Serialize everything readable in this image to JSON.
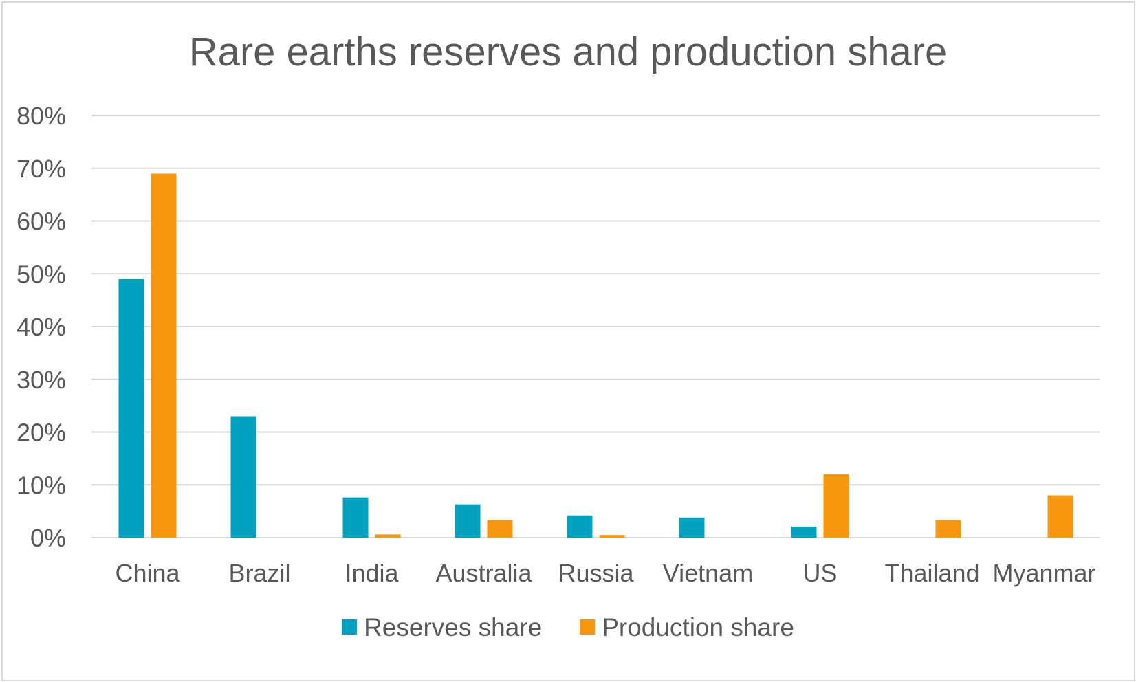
{
  "chart_data": {
    "type": "bar",
    "title": "Rare earths reserves and production share",
    "xlabel": "",
    "ylabel": "",
    "ylim": [
      0,
      0.8
    ],
    "y_ticks": [
      0,
      0.1,
      0.2,
      0.3,
      0.4,
      0.5,
      0.6,
      0.7,
      0.8
    ],
    "y_tick_labels": [
      "0%",
      "10%",
      "20%",
      "30%",
      "40%",
      "50%",
      "60%",
      "70%",
      "80%"
    ],
    "grid": true,
    "legend_position": "bottom",
    "categories": [
      "China",
      "Brazil",
      "India",
      "Australia",
      "Russia",
      "Vietnam",
      "US",
      "Thailand",
      "Myanmar"
    ],
    "series": [
      {
        "name": "Reserves share",
        "color": "#00A2BF",
        "values": [
          0.49,
          0.23,
          0.076,
          0.063,
          0.042,
          0.038,
          0.021,
          0,
          0
        ]
      },
      {
        "name": "Production share",
        "color": "#F7960F",
        "values": [
          0.69,
          0,
          0.006,
          0.033,
          0.005,
          0,
          0.12,
          0.033,
          0.08
        ]
      }
    ],
    "gridline_color": "#d9d9d9",
    "text_color": "#595959"
  }
}
